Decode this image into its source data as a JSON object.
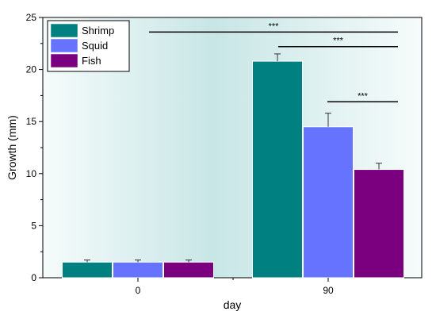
{
  "chart_data": {
    "type": "bar",
    "xlabel": "day",
    "ylabel": "Growth (mm)",
    "categories": [
      "0",
      "90"
    ],
    "ylim": [
      0,
      25
    ],
    "yticks": [
      "0",
      "5",
      "10",
      "15",
      "20",
      "25"
    ],
    "legend_position": "top-left",
    "grid": false,
    "series": [
      {
        "name": "Shrimp",
        "color": "#008080",
        "values": [
          1.5,
          20.8
        ],
        "errors": [
          0.2,
          0.7
        ]
      },
      {
        "name": "Squid",
        "color": "#6673FF",
        "values": [
          1.5,
          14.5
        ],
        "errors": [
          0.2,
          1.3
        ]
      },
      {
        "name": "Fish",
        "color": "#7A0080",
        "values": [
          1.5,
          10.4
        ],
        "errors": [
          0.2,
          0.6
        ]
      }
    ],
    "significance": [
      {
        "label": "***",
        "from": "0",
        "to": "90 Fish",
        "y": 23.6
      },
      {
        "label": "***",
        "from": "90 Shrimp",
        "to": "90 Fish",
        "y": 22.2
      },
      {
        "label": "***",
        "from": "90 Squid",
        "to": "90 Fish",
        "y": 16.9
      }
    ]
  }
}
